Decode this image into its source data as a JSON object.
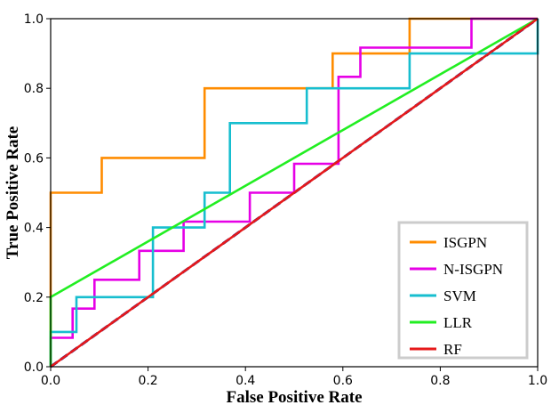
{
  "chart_data": {
    "type": "line",
    "title": "",
    "xlabel": "False Positive Rate",
    "ylabel": "True Positive Rate",
    "xlim": [
      0,
      1
    ],
    "ylim": [
      0,
      1
    ],
    "xticks": [
      "0.0",
      "0.2",
      "0.4",
      "0.6",
      "0.8",
      "1.0"
    ],
    "yticks": [
      "0.0",
      "0.2",
      "0.4",
      "0.6",
      "0.8",
      "1.0"
    ],
    "grid": false,
    "legend_position": "bottom-right",
    "series": [
      {
        "name": "ISGPN",
        "color": "#ff8c00",
        "points": [
          [
            0,
            0
          ],
          [
            0,
            0.5
          ],
          [
            0.105,
            0.5
          ],
          [
            0.105,
            0.6
          ],
          [
            0.316,
            0.6
          ],
          [
            0.316,
            0.8
          ],
          [
            0.579,
            0.8
          ],
          [
            0.579,
            0.9
          ],
          [
            0.737,
            0.9
          ],
          [
            0.737,
            1.0
          ],
          [
            1.0,
            1.0
          ]
        ]
      },
      {
        "name": "N-ISGPN",
        "color": "#e600e6",
        "points": [
          [
            0,
            0
          ],
          [
            0,
            0.083
          ],
          [
            0.045,
            0.083
          ],
          [
            0.045,
            0.167
          ],
          [
            0.09,
            0.167
          ],
          [
            0.09,
            0.25
          ],
          [
            0.182,
            0.25
          ],
          [
            0.182,
            0.333
          ],
          [
            0.273,
            0.333
          ],
          [
            0.273,
            0.417
          ],
          [
            0.409,
            0.417
          ],
          [
            0.409,
            0.5
          ],
          [
            0.5,
            0.5
          ],
          [
            0.5,
            0.583
          ],
          [
            0.591,
            0.583
          ],
          [
            0.591,
            0.833
          ],
          [
            0.636,
            0.833
          ],
          [
            0.636,
            0.917
          ],
          [
            0.864,
            0.917
          ],
          [
            0.864,
            1.0
          ],
          [
            1.0,
            1.0
          ]
        ]
      },
      {
        "name": "SVM",
        "color": "#17becf",
        "points": [
          [
            0,
            0
          ],
          [
            0,
            0.1
          ],
          [
            0.053,
            0.1
          ],
          [
            0.053,
            0.2
          ],
          [
            0.21,
            0.2
          ],
          [
            0.21,
            0.4
          ],
          [
            0.316,
            0.4
          ],
          [
            0.316,
            0.5
          ],
          [
            0.368,
            0.5
          ],
          [
            0.368,
            0.7
          ],
          [
            0.526,
            0.7
          ],
          [
            0.526,
            0.8
          ],
          [
            0.737,
            0.8
          ],
          [
            0.737,
            0.9
          ],
          [
            1.0,
            0.9
          ],
          [
            1.0,
            1.0
          ]
        ]
      },
      {
        "name": "LLR",
        "color": "#22ee22",
        "points": [
          [
            0,
            0
          ],
          [
            0,
            0.2
          ],
          [
            1.0,
            1.0
          ]
        ]
      },
      {
        "name": "RF",
        "color": "#e6191a",
        "points": [
          [
            0,
            0
          ],
          [
            1.0,
            1.0
          ]
        ]
      }
    ],
    "reference_line": {
      "color": "#000080",
      "dashed": true,
      "points": [
        [
          0,
          0
        ],
        [
          1,
          1
        ]
      ]
    }
  }
}
